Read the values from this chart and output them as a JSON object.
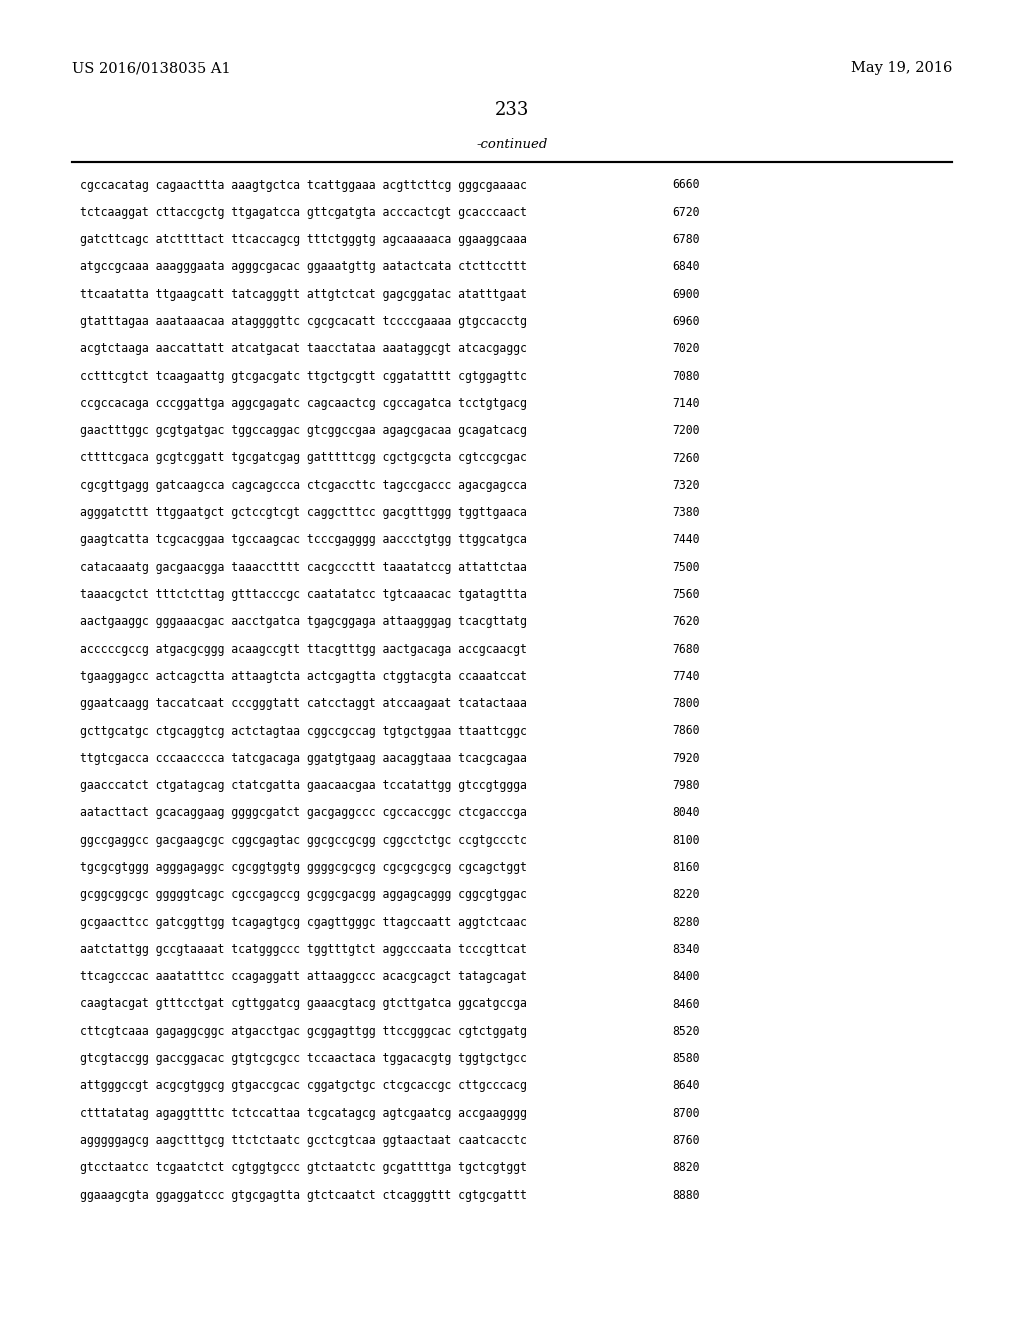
{
  "patent_number": "US 2016/0138035 A1",
  "date": "May 19, 2016",
  "page_number": "233",
  "continued_text": "-continued",
  "background_color": "#ffffff",
  "text_color": "#000000",
  "sequences": [
    [
      "cgccacatag cagaacttta aaagtgctca tcattggaaa acgttcttcg gggcgaaaac",
      "6660"
    ],
    [
      "tctcaaggat cttaccgctg ttgagatcca gttcgatgta acccactcgt gcacccaact",
      "6720"
    ],
    [
      "gatcttcagc atcttttact ttcaccagcg tttctgggtg agcaaaaaca ggaaggcaaa",
      "6780"
    ],
    [
      "atgccgcaaa aaagggaata agggcgacac ggaaatgttg aatactcata ctcttccttt",
      "6840"
    ],
    [
      "ttcaatatta ttgaagcatt tatcagggtt attgtctcat gagcggatac atatttgaat",
      "6900"
    ],
    [
      "gtatttagaa aaataaacaa ataggggttc cgcgcacatt tccccgaaaa gtgccacctg",
      "6960"
    ],
    [
      "acgtctaaga aaccattatt atcatgacat taacctataa aaataggcgt atcacgaggc",
      "7020"
    ],
    [
      "cctttcgtct tcaagaattg gtcgacgatc ttgctgcgtt cggatatttt cgtggagttc",
      "7080"
    ],
    [
      "ccgccacaga cccggattga aggcgagatc cagcaactcg cgccagatca tcctgtgacg",
      "7140"
    ],
    [
      "gaactttggc gcgtgatgac tggccaggac gtcggccgaa agagcgacaa gcagatcacg",
      "7200"
    ],
    [
      "cttttcgaca gcgtcggatt tgcgatcgag gatttttcgg cgctgcgcta cgtccgcgac",
      "7260"
    ],
    [
      "cgcgttgagg gatcaagcca cagcagccca ctcgaccttc tagccgaccc agacgagcca",
      "7320"
    ],
    [
      "agggatcttt ttggaatgct gctccgtcgt caggctttcc gacgtttggg tggttgaaca",
      "7380"
    ],
    [
      "gaagtcatta tcgcacggaa tgccaagcac tcccgagggg aaccctgtgg ttggcatgca",
      "7440"
    ],
    [
      "catacaaatg gacgaacgga taaacctttt cacgcccttt taaatatccg attattctaa",
      "7500"
    ],
    [
      "taaacgctct tttctcttag gtttacccgc caatatatcc tgtcaaacac tgatagttta",
      "7560"
    ],
    [
      "aactgaaggc gggaaacgac aacctgatca tgagcggaga attaagggag tcacgttatg",
      "7620"
    ],
    [
      "acccccgccg atgacgcggg acaagccgtt ttacgtttgg aactgacaga accgcaacgt",
      "7680"
    ],
    [
      "tgaaggagcc actcagctta attaagtcta actcgagtta ctggtacgta ccaaatccat",
      "7740"
    ],
    [
      "ggaatcaagg taccatcaat cccgggtatt catcctaggt atccaagaat tcatactaaa",
      "7800"
    ],
    [
      "gcttgcatgc ctgcaggtcg actctagtaa cggccgccag tgtgctggaa ttaattcggc",
      "7860"
    ],
    [
      "ttgtcgacca cccaacccca tatcgacaga ggatgtgaag aacaggtaaa tcacgcagaa",
      "7920"
    ],
    [
      "gaacccatct ctgatagcag ctatcgatta gaacaacgaa tccatattgg gtccgtggga",
      "7980"
    ],
    [
      "aatacttact gcacaggaag ggggcgatct gacgaggccc cgccaccggc ctcgacccga",
      "8040"
    ],
    [
      "ggccgaggcc gacgaagcgc cggcgagtac ggcgccgcgg cggcctctgc ccgtgccctc",
      "8100"
    ],
    [
      "tgcgcgtggg agggagaggc cgcggtggtg ggggcgcgcg cgcgcgcgcg cgcagctggt",
      "8160"
    ],
    [
      "gcggcggcgc gggggtcagc cgccgagccg gcggcgacgg aggagcaggg cggcgtggac",
      "8220"
    ],
    [
      "gcgaacttcc gatcggttgg tcagagtgcg cgagttgggc ttagccaatt aggtctcaac",
      "8280"
    ],
    [
      "aatctattgg gccgtaaaat tcatgggccc tggtttgtct aggcccaata tcccgttcat",
      "8340"
    ],
    [
      "ttcagcccac aaatatttcc ccagaggatt attaaggccc acacgcagct tatagcagat",
      "8400"
    ],
    [
      "caagtacgat gtttcctgat cgttggatcg gaaacgtacg gtcttgatca ggcatgccga",
      "8460"
    ],
    [
      "cttcgtcaaa gagaggcggc atgacctgac gcggagttgg ttccgggcac cgtctggatg",
      "8520"
    ],
    [
      "gtcgtaccgg gaccggacac gtgtcgcgcc tccaactaca tggacacgtg tggtgctgcc",
      "8580"
    ],
    [
      "attgggccgt acgcgtggcg gtgaccgcac cggatgctgc ctcgcaccgc cttgcccacg",
      "8640"
    ],
    [
      "ctttatatag agaggttttc tctccattaa tcgcatagcg agtcgaatcg accgaagggg",
      "8700"
    ],
    [
      "agggggagcg aagctttgcg ttctctaatc gcctcgtcaa ggtaactaat caatcacctc",
      "8760"
    ],
    [
      "gtcctaatcc tcgaatctct cgtggtgccc gtctaatctc gcgattttga tgctcgtggt",
      "8820"
    ],
    [
      "ggaaagcgta ggaggatccc gtgcgagtta gtctcaatct ctcagggttt cgtgcgattt",
      "8880"
    ]
  ]
}
